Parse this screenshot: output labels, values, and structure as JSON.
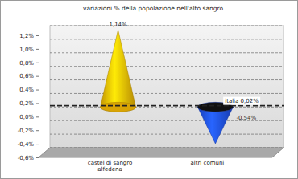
{
  "chart_data": {
    "type": "cone",
    "title": "variazioni % della popolazione nell'alto sangro",
    "categories": [
      "castel di sangro alfedena",
      "altri comuni"
    ],
    "values": [
      1.14,
      -0.54
    ],
    "value_labels": [
      "1,14%",
      "-0,54%"
    ],
    "data_labels": true,
    "colors": [
      "#f2b705",
      "#1f4fe6"
    ],
    "ylim": [
      -0.6,
      1.2
    ],
    "yticks": [
      {
        "value": -0.6,
        "label": "-0,6%"
      },
      {
        "value": -0.4,
        "label": "-0,4%"
      },
      {
        "value": -0.2,
        "label": "-0,2%"
      },
      {
        "value": 0,
        "label": "0,0%"
      },
      {
        "value": 0.2,
        "label": "0,2%"
      },
      {
        "value": 0.4,
        "label": "0,4%"
      },
      {
        "value": 0.6,
        "label": "0,6%"
      },
      {
        "value": 0.8,
        "label": "0,8%"
      },
      {
        "value": 1.0,
        "label": "1,0%"
      },
      {
        "value": 1.2,
        "label": "1,2%"
      }
    ],
    "grid": true,
    "reference_line": {
      "value": 0.02,
      "label": "italia 0,02%"
    }
  }
}
